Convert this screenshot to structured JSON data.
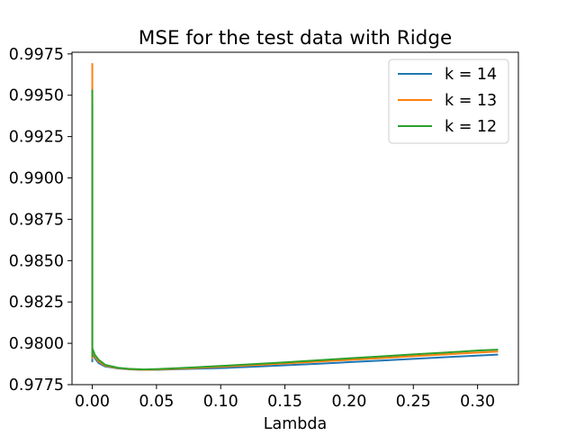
{
  "chart_data": {
    "type": "line",
    "title": "MSE for the test data with Ridge",
    "xlabel": "Lambda",
    "ylabel": "",
    "xlim": [
      -0.0158,
      0.3318
    ],
    "ylim": [
      0.9775,
      0.9976
    ],
    "xticks": [
      0.0,
      0.05,
      0.1,
      0.15,
      0.2,
      0.25,
      0.3
    ],
    "xtick_labels": [
      "0.00",
      "0.05",
      "0.10",
      "0.15",
      "0.20",
      "0.25",
      "0.30"
    ],
    "yticks": [
      0.9775,
      0.98,
      0.9825,
      0.985,
      0.9875,
      0.99,
      0.9925,
      0.995,
      0.9975
    ],
    "ytick_labels": [
      "0.9775",
      "0.9800",
      "0.9825",
      "0.9850",
      "0.9875",
      "0.9900",
      "0.9925",
      "0.9950",
      "0.9975"
    ],
    "grid": false,
    "legend_position": "top-right",
    "series": [
      {
        "name": "k = 14",
        "color": "#1f77b4",
        "x": [
          0.0,
          0.0,
          0.0,
          0.0,
          0.001,
          0.002,
          0.005,
          0.01,
          0.02,
          0.03,
          0.04,
          0.05,
          0.075,
          0.1,
          0.125,
          0.15,
          0.175,
          0.2,
          0.225,
          0.25,
          0.275,
          0.3,
          0.316
        ],
        "y": [
          0.9789,
          0.9945,
          0.9789,
          0.9795,
          0.9793,
          0.9791,
          0.9788,
          0.9786,
          0.97848,
          0.97842,
          0.9784,
          0.9784,
          0.97845,
          0.9785,
          0.97858,
          0.97867,
          0.97876,
          0.97886,
          0.97896,
          0.97906,
          0.97916,
          0.97926,
          0.97932
        ]
      },
      {
        "name": "k = 13",
        "color": "#ff7f0e",
        "x": [
          0.0,
          0.0,
          0.0,
          0.0,
          0.001,
          0.002,
          0.005,
          0.01,
          0.02,
          0.03,
          0.04,
          0.05,
          0.075,
          0.1,
          0.125,
          0.15,
          0.175,
          0.2,
          0.225,
          0.25,
          0.275,
          0.3,
          0.316
        ],
        "y": [
          0.9791,
          0.9969,
          0.9791,
          0.9796,
          0.9794,
          0.9792,
          0.9789,
          0.97865,
          0.9785,
          0.97843,
          0.9784,
          0.97841,
          0.97849,
          0.97858,
          0.97868,
          0.97878,
          0.97889,
          0.979,
          0.97911,
          0.97922,
          0.97933,
          0.97944,
          0.9795
        ]
      },
      {
        "name": "k = 12",
        "color": "#2ca02c",
        "x": [
          0.0,
          0.0,
          0.0,
          0.0,
          0.001,
          0.002,
          0.005,
          0.01,
          0.02,
          0.03,
          0.04,
          0.05,
          0.075,
          0.1,
          0.125,
          0.15,
          0.175,
          0.2,
          0.225,
          0.25,
          0.275,
          0.3,
          0.316
        ],
        "y": [
          0.9792,
          0.9953,
          0.9792,
          0.9797,
          0.9795,
          0.9793,
          0.979,
          0.9787,
          0.97852,
          0.97845,
          0.97842,
          0.97844,
          0.97853,
          0.97863,
          0.97874,
          0.97885,
          0.97897,
          0.97909,
          0.97921,
          0.97933,
          0.97944,
          0.97956,
          0.97962
        ]
      }
    ]
  }
}
